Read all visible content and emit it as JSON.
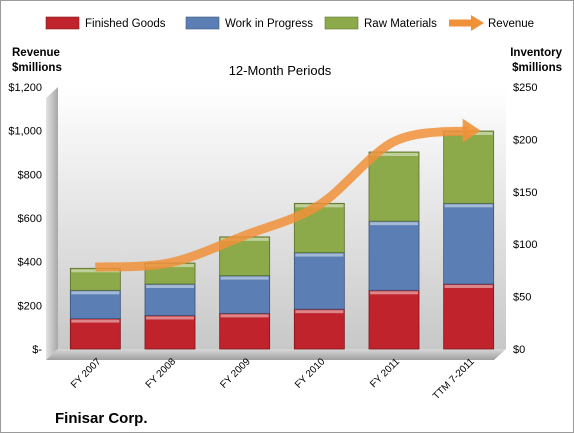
{
  "chart_data": {
    "type": "bar",
    "subtype": "stacked-bar-with-line",
    "title": "12-Month Periods",
    "company": "Finisar Corp.",
    "categories": [
      "FY 2007",
      "FY 2008",
      "FY 2009",
      "FY 2010",
      "FY 2011",
      "TTM 7-2011"
    ],
    "left_axis": {
      "label_line1": "Revenue",
      "label_line2": "$millions",
      "ylim": [
        0,
        1200
      ],
      "ticks": [
        {
          "value": 0,
          "label": "$-"
        },
        {
          "value": 200,
          "label": "$200"
        },
        {
          "value": 400,
          "label": "$400"
        },
        {
          "value": 600,
          "label": "$600"
        },
        {
          "value": 800,
          "label": "$800"
        },
        {
          "value": 1000,
          "label": "$1,000"
        },
        {
          "value": 1200,
          "label": "$1,200"
        }
      ]
    },
    "right_axis": {
      "label_line1": "Inventory",
      "label_line2": "$millions",
      "ylim": [
        0,
        250
      ],
      "ticks": [
        {
          "value": 0,
          "label": "$0"
        },
        {
          "value": 50,
          "label": "$50"
        },
        {
          "value": 100,
          "label": "$100"
        },
        {
          "value": 150,
          "label": "$150"
        },
        {
          "value": 200,
          "label": "$200"
        },
        {
          "value": 250,
          "label": "$250"
        }
      ]
    },
    "series": [
      {
        "name": "Finished Goods",
        "axis": "right",
        "kind": "bar",
        "color": "#c0232b",
        "values": [
          29,
          32,
          34,
          38,
          56,
          62
        ]
      },
      {
        "name": "Work in Progress",
        "axis": "right",
        "kind": "bar",
        "color": "#5b7fb5",
        "values": [
          27,
          30,
          36,
          54,
          66,
          77
        ]
      },
      {
        "name": "Raw Materials",
        "axis": "right",
        "kind": "bar",
        "color": "#8caa4a",
        "values": [
          21,
          20,
          37,
          47,
          66,
          69
        ]
      },
      {
        "name": "Revenue",
        "axis": "left",
        "kind": "line",
        "color": "#f0913a",
        "values": [
          375,
          395,
          520,
          660,
          950,
          1000
        ]
      }
    ],
    "legend_position": "top",
    "grid": false
  }
}
